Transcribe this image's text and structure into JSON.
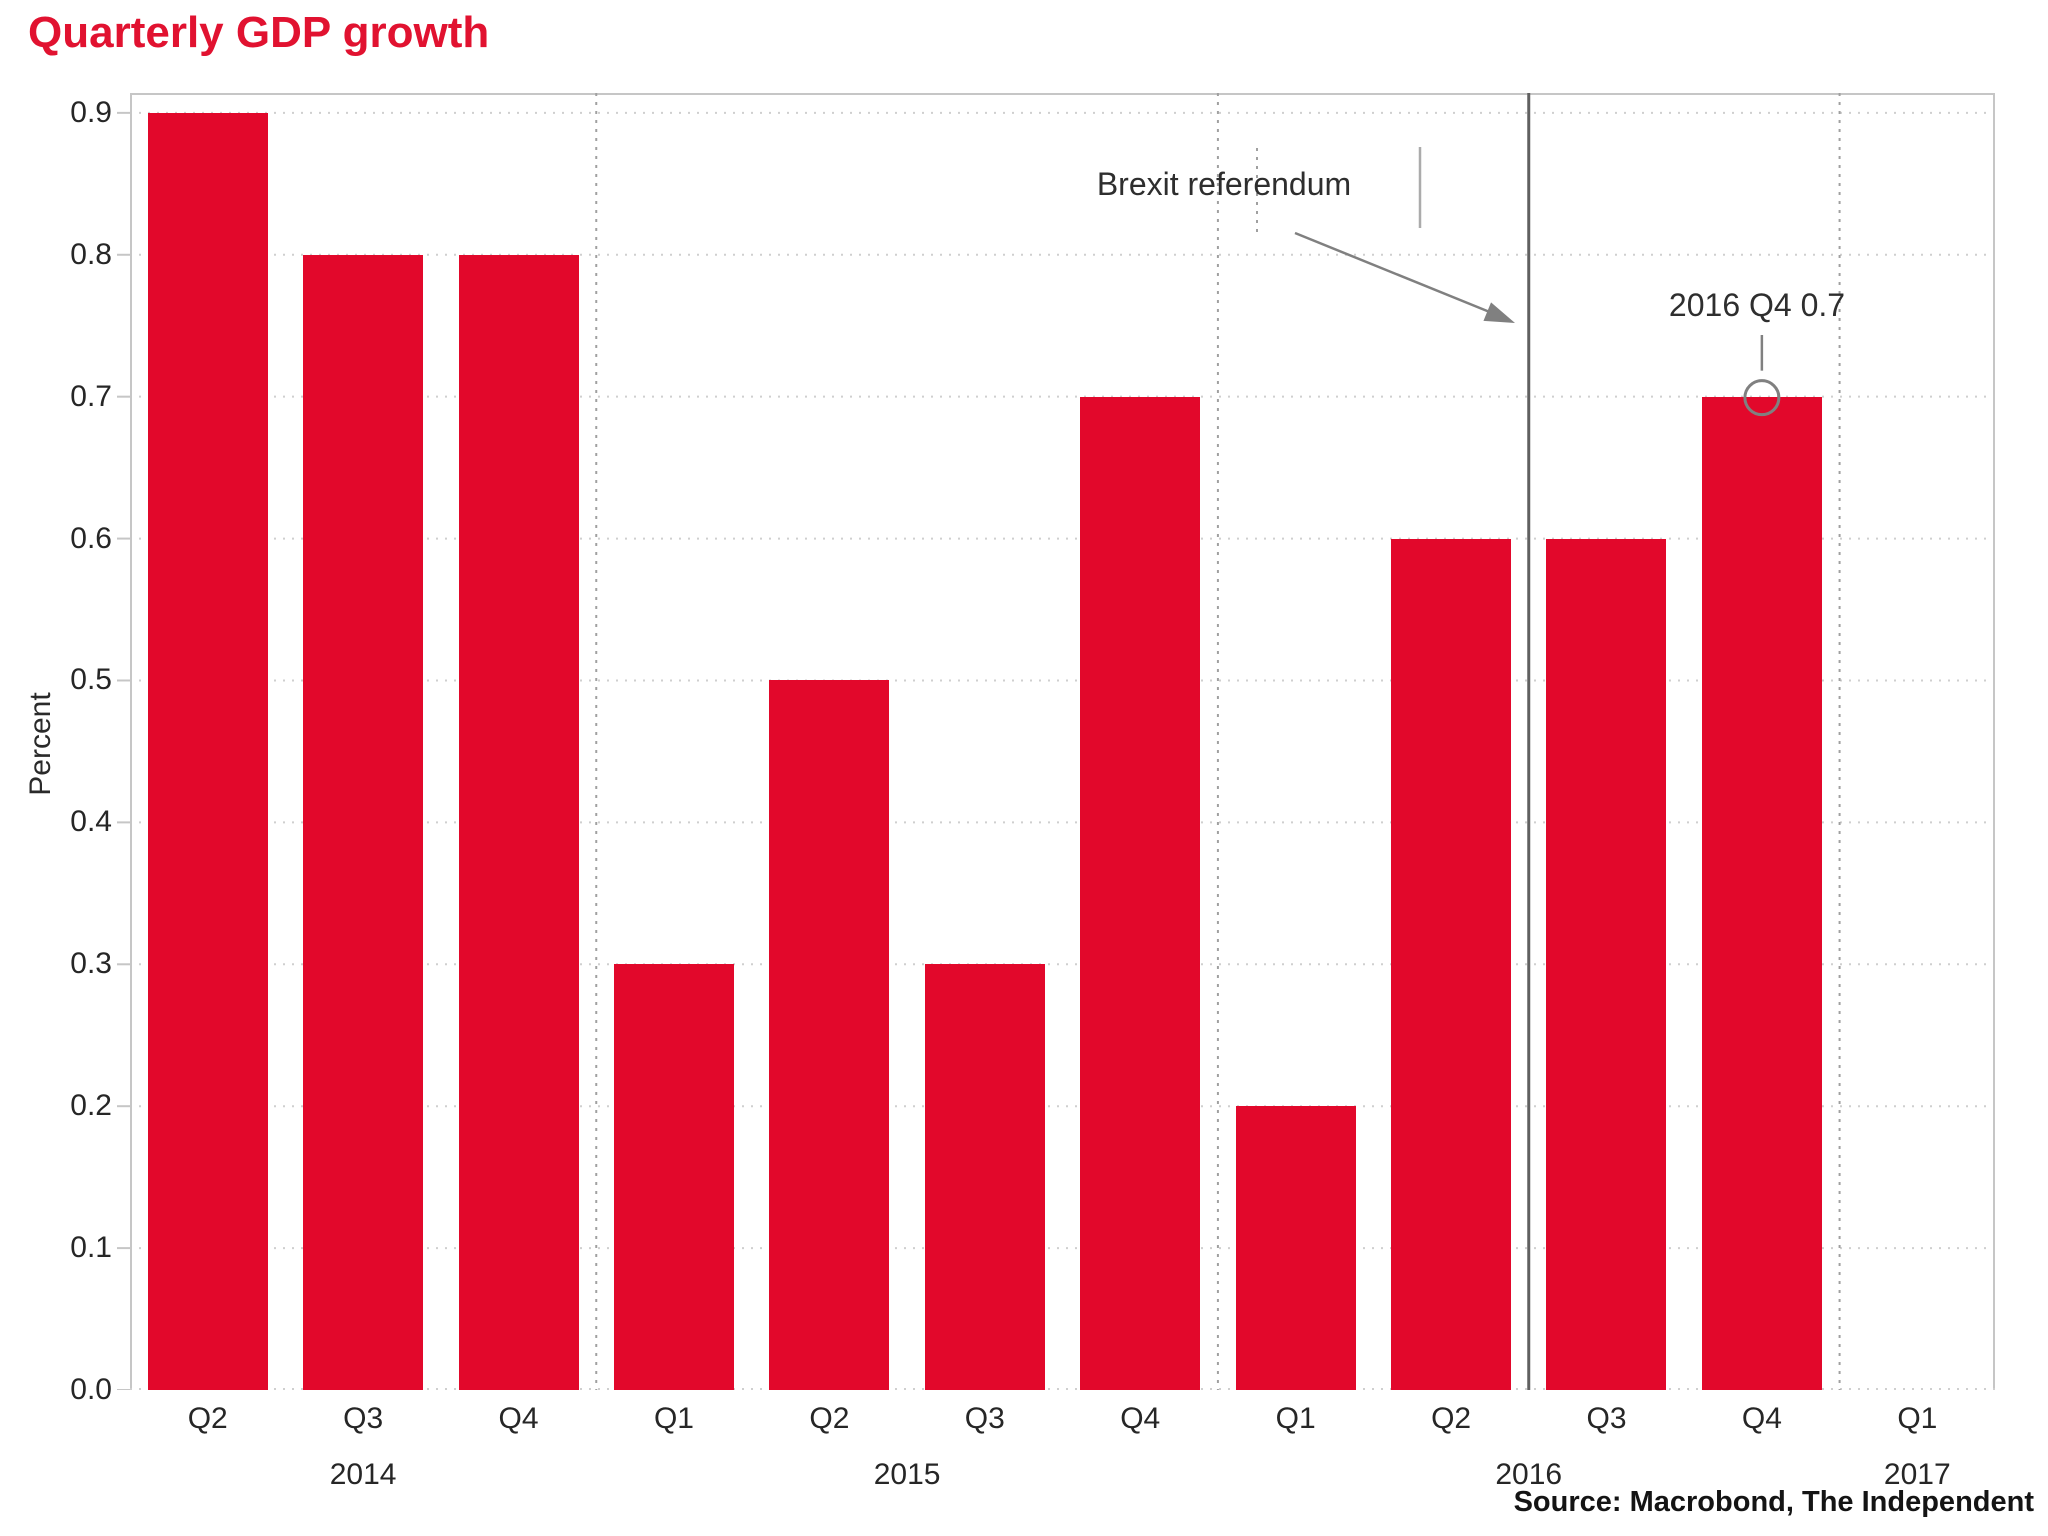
{
  "title_color": "#e11230",
  "source": {
    "text": "Source: Macrobond, The Independent"
  },
  "colors": {
    "bar": "#e2082b",
    "title": "#e11230",
    "grid": "#cfcfcf",
    "border": "#c6c6c6",
    "separator": "#a0a0a0",
    "event_line": "#606060",
    "annotation_stroke": "#808080",
    "text": "#262626"
  },
  "chart_data": {
    "type": "bar",
    "title": "Quarterly GDP growth",
    "ylabel": "Percent",
    "xlabel": "",
    "ylim": [
      0,
      0.914
    ],
    "grid": "horizontal-dotted",
    "legend": "none",
    "ytick_labels": [
      "0.0",
      "0.1",
      "0.2",
      "0.3",
      "0.4",
      "0.5",
      "0.6",
      "0.7",
      "0.8",
      "0.9"
    ],
    "quarters": [
      "Q2",
      "Q3",
      "Q4",
      "Q1",
      "Q2",
      "Q3",
      "Q4",
      "Q1",
      "Q2",
      "Q3",
      "Q4",
      "Q1"
    ],
    "full_labels": [
      "2014 Q2",
      "2014 Q3",
      "2014 Q4",
      "2015 Q1",
      "2015 Q2",
      "2015 Q3",
      "2015 Q4",
      "2016 Q1",
      "2016 Q2",
      "2016 Q3",
      "2016 Q4",
      "2017 Q1"
    ],
    "values": [
      0.9,
      0.8,
      0.8,
      0.3,
      0.5,
      0.3,
      0.7,
      0.2,
      0.6,
      0.6,
      0.7,
      null
    ],
    "year_groups": [
      {
        "label": "2014",
        "from_slot": 0,
        "to_slot": 2
      },
      {
        "label": "2015",
        "from_slot": 3,
        "to_slot": 6
      },
      {
        "label": "2016",
        "from_slot": 7,
        "to_slot": 10
      },
      {
        "label": "2017",
        "from_slot": 11,
        "to_slot": 11
      }
    ],
    "year_separators_after_slots": [
      2,
      6,
      10
    ],
    "event_line": {
      "label": "Brexit referendum",
      "after_slot": 8
    },
    "point_annotation": {
      "label": "2016 Q4 0.7",
      "slot": 10,
      "value": 0.7
    }
  }
}
